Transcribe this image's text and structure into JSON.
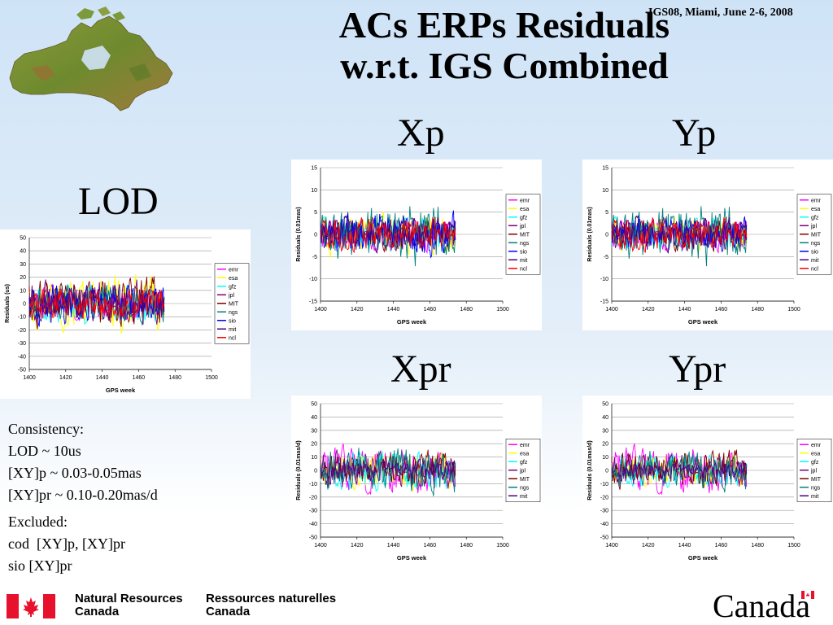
{
  "slide": {
    "title_line1": "ACs ERPs Residuals",
    "title_line2": "w.r.t. IGS Combined",
    "conference": "IGS08, Miami, June 2-6, 2008",
    "labels": {
      "lod": "LOD",
      "xp": "Xp",
      "yp": "Yp",
      "xpr": "Xpr",
      "ypr": "Ypr"
    }
  },
  "notes": {
    "consistency_title": "Consistency:",
    "consistency_lines": [
      "LOD ~ 10us",
      "[XY]p ~ 0.03-0.05mas",
      "[XY]pr ~ 0.10-0.20mas/d"
    ],
    "excluded_title": "Excluded:",
    "excluded_lines": [
      "cod  [XY]p, [XY]pr",
      "sio [XY]pr"
    ]
  },
  "footer": {
    "nrc_en_line1": "Natural Resources",
    "nrc_en_line2": "Canada",
    "nrc_fr_line1": "Ressources naturelles",
    "nrc_fr_line2": "Canada",
    "wordmark": "Canada",
    "flag_color": "#e8112d"
  },
  "chart_data": [
    {
      "id": "lod",
      "type": "line",
      "title": "",
      "xlabel": "GPS week",
      "ylabel": "Residuals (us)",
      "xlim": [
        1400,
        1500
      ],
      "ylim": [
        -50,
        50
      ],
      "xticks": [
        1400,
        1420,
        1440,
        1460,
        1480,
        1500
      ],
      "yticks": [
        -50,
        -40,
        -30,
        -20,
        -10,
        0,
        10,
        20,
        30,
        40,
        50
      ],
      "grid": true,
      "legend_position": "right",
      "x_range": [
        1400,
        1474
      ],
      "series": [
        {
          "name": "emr",
          "color": "#ff00ff",
          "amplitude": 10
        },
        {
          "name": "esa",
          "color": "#ffff00",
          "amplitude": 18
        },
        {
          "name": "gfz",
          "color": "#00ffff",
          "amplitude": 12
        },
        {
          "name": "jpl",
          "color": "#800080",
          "amplitude": 14
        },
        {
          "name": "MIT",
          "color": "#800000",
          "amplitude": 16
        },
        {
          "name": "ngs",
          "color": "#008080",
          "amplitude": 12
        },
        {
          "name": "sio",
          "color": "#0000ff",
          "amplitude": 13
        },
        {
          "name": "mit",
          "color": "#4b0082",
          "amplitude": 11
        },
        {
          "name": "ncl",
          "color": "#ff0000",
          "amplitude": 10
        }
      ]
    },
    {
      "id": "xp",
      "type": "line",
      "title": "",
      "xlabel": "GPS week",
      "ylabel": "Residuals (0.01mas)",
      "xlim": [
        1400,
        1500
      ],
      "ylim": [
        -15,
        15
      ],
      "xticks": [
        1400,
        1420,
        1440,
        1460,
        1480,
        1500
      ],
      "yticks": [
        -15,
        -10,
        -5,
        0,
        5,
        10,
        15
      ],
      "grid": true,
      "legend_position": "right",
      "x_range": [
        1400,
        1474
      ],
      "series": [
        {
          "name": "emr",
          "color": "#ff00ff",
          "amplitude": 3
        },
        {
          "name": "esa",
          "color": "#ffff00",
          "amplitude": 4
        },
        {
          "name": "gfz",
          "color": "#00ffff",
          "amplitude": 3
        },
        {
          "name": "jpl",
          "color": "#800080",
          "amplitude": 3
        },
        {
          "name": "MIT",
          "color": "#800000",
          "amplitude": 3
        },
        {
          "name": "ngs",
          "color": "#008080",
          "amplitude": 6
        },
        {
          "name": "sio",
          "color": "#0000ff",
          "amplitude": 4
        },
        {
          "name": "mit",
          "color": "#4b0082",
          "amplitude": 3
        },
        {
          "name": "ncl",
          "color": "#ff0000",
          "amplitude": 3
        }
      ]
    },
    {
      "id": "yp",
      "type": "line",
      "title": "",
      "xlabel": "GPS week",
      "ylabel": "Residuals (0.01mas)",
      "xlim": [
        1400,
        1500
      ],
      "ylim": [
        -15,
        15
      ],
      "xticks": [
        1400,
        1420,
        1440,
        1460,
        1480,
        1500
      ],
      "yticks": [
        -15,
        -10,
        -5,
        0,
        5,
        10,
        15
      ],
      "grid": true,
      "legend_position": "right",
      "x_range": [
        1400,
        1474
      ],
      "series": [
        {
          "name": "emr",
          "color": "#ff00ff",
          "amplitude": 3
        },
        {
          "name": "esa",
          "color": "#ffff00",
          "amplitude": 3
        },
        {
          "name": "gfz",
          "color": "#00ffff",
          "amplitude": 3
        },
        {
          "name": "jpl",
          "color": "#800080",
          "amplitude": 3
        },
        {
          "name": "MIT",
          "color": "#800000",
          "amplitude": 3
        },
        {
          "name": "ngs",
          "color": "#008080",
          "amplitude": 6
        },
        {
          "name": "sio",
          "color": "#0000ff",
          "amplitude": 3
        },
        {
          "name": "mit",
          "color": "#4b0082",
          "amplitude": 3
        },
        {
          "name": "ncl",
          "color": "#ff0000",
          "amplitude": 3
        }
      ]
    },
    {
      "id": "xpr",
      "type": "line",
      "title": "",
      "xlabel": "GPS week",
      "ylabel": "Residuals (0.01mas/d)",
      "xlim": [
        1400,
        1500
      ],
      "ylim": [
        -50,
        50
      ],
      "xticks": [
        1400,
        1420,
        1440,
        1460,
        1480,
        1500
      ],
      "yticks": [
        -50,
        -40,
        -30,
        -20,
        -10,
        0,
        10,
        20,
        30,
        40,
        50
      ],
      "grid": true,
      "legend_position": "right",
      "x_range": [
        1400,
        1474
      ],
      "series": [
        {
          "name": "emr",
          "color": "#ff00ff",
          "amplitude": 14
        },
        {
          "name": "esa",
          "color": "#ffff00",
          "amplitude": 12
        },
        {
          "name": "gfz",
          "color": "#00ffff",
          "amplitude": 12
        },
        {
          "name": "jpl",
          "color": "#800080",
          "amplitude": 12
        },
        {
          "name": "MIT",
          "color": "#800000",
          "amplitude": 10
        },
        {
          "name": "ngs",
          "color": "#008080",
          "amplitude": 14
        },
        {
          "name": "mit",
          "color": "#4b0082",
          "amplitude": 8
        }
      ]
    },
    {
      "id": "ypr",
      "type": "line",
      "title": "",
      "xlabel": "GPS week",
      "ylabel": "Residuals (0.01mas/d)",
      "xlim": [
        1400,
        1500
      ],
      "ylim": [
        -50,
        50
      ],
      "xticks": [
        1400,
        1420,
        1440,
        1460,
        1480,
        1500
      ],
      "yticks": [
        -50,
        -40,
        -30,
        -20,
        -10,
        0,
        10,
        20,
        30,
        40,
        50
      ],
      "grid": true,
      "legend_position": "right",
      "x_range": [
        1400,
        1474
      ],
      "series": [
        {
          "name": "emr",
          "color": "#ff00ff",
          "amplitude": 14
        },
        {
          "name": "esa",
          "color": "#ffff00",
          "amplitude": 10
        },
        {
          "name": "gfz",
          "color": "#00ffff",
          "amplitude": 10
        },
        {
          "name": "jpl",
          "color": "#800080",
          "amplitude": 10
        },
        {
          "name": "MIT",
          "color": "#800000",
          "amplitude": 12
        },
        {
          "name": "ngs",
          "color": "#008080",
          "amplitude": 12
        },
        {
          "name": "mit",
          "color": "#4b0082",
          "amplitude": 6
        }
      ]
    }
  ]
}
